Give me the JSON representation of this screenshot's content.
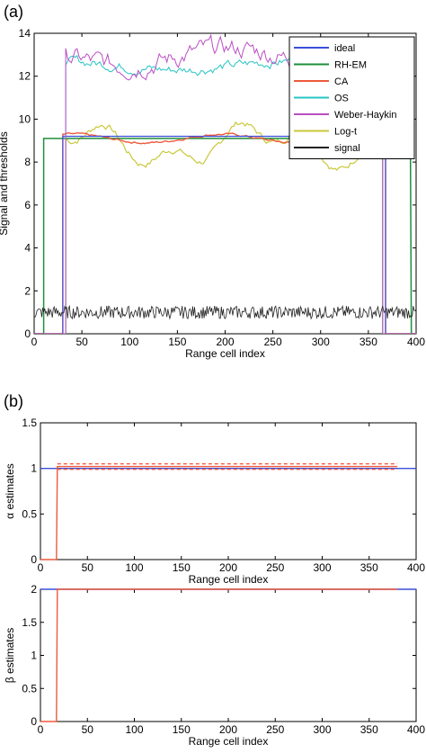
{
  "chart_data": [
    {
      "panel_label": "(a)",
      "type": "line",
      "xlabel": "Range cell index",
      "ylabel": "Signal and thresholds",
      "xlim": [
        0,
        400
      ],
      "ylim": [
        0,
        14
      ],
      "xticks": [
        "0",
        "50",
        "100",
        "150",
        "200",
        "250",
        "300",
        "350",
        "400"
      ],
      "yticks": [
        "0",
        "2",
        "4",
        "6",
        "8",
        "10",
        "12",
        "14"
      ],
      "legend_position": "top-right",
      "series": [
        {
          "name": "ideal",
          "color": "#3b4fd8",
          "level": 9.2,
          "x_start": 30,
          "x_end": 368
        },
        {
          "name": "RH-EM",
          "color": "#1f8f3a",
          "level": 9.1,
          "x_start": 10,
          "x_end": 395
        },
        {
          "name": "CA",
          "color": "#ee5a3c",
          "level": 9.1,
          "x_start": 30,
          "x_end": 368
        },
        {
          "name": "OS",
          "color": "#27c4c4",
          "level": 12.5,
          "x_start": 33,
          "x_end": 365
        },
        {
          "name": "Weber-Haykin",
          "color": "#bb4fc4",
          "level": 12.9,
          "x_start": 33,
          "x_end": 365
        },
        {
          "name": "Log-t",
          "color": "#c9c83a",
          "level": 9.0,
          "x_start": 33,
          "x_end": 365
        },
        {
          "name": "signal",
          "color": "#222222",
          "level": 1.0,
          "x_start": 0,
          "x_end": 400
        }
      ]
    },
    {
      "panel_label": "(b)",
      "type": "line",
      "xlabel": "Range cell index",
      "ylabel": "α estimates",
      "xlim": [
        0,
        400
      ],
      "ylim": [
        0,
        1.5
      ],
      "xticks": [
        "0",
        "50",
        "100",
        "150",
        "200",
        "250",
        "300",
        "350",
        "400"
      ],
      "yticks": [
        "0",
        "0.5",
        "1",
        "1.5"
      ],
      "series": [
        {
          "color": "#3b4fd8",
          "x": [
            0,
            400
          ],
          "y": [
            1,
            1
          ]
        },
        {
          "color": "#ee5a3c",
          "x": [
            0,
            17,
            18,
            380
          ],
          "y": [
            0,
            0,
            1.02,
            1.02
          ]
        },
        {
          "color": "#ee5a3c",
          "dashed": true,
          "x": [
            18,
            380
          ],
          "y": [
            1.05,
            1.05
          ]
        },
        {
          "color": "#ee5a3c",
          "dashed": true,
          "x": [
            18,
            380
          ],
          "y": [
            0.99,
            0.99
          ]
        }
      ]
    },
    {
      "type": "line",
      "xlabel": "Range cell index",
      "ylabel": "β estimates",
      "xlim": [
        0,
        400
      ],
      "ylim": [
        0,
        2
      ],
      "xticks": [
        "0",
        "50",
        "100",
        "150",
        "200",
        "250",
        "300",
        "350",
        "400"
      ],
      "yticks": [
        "0",
        "0.5",
        "1",
        "1.5",
        "2"
      ],
      "series": [
        {
          "color": "#3b4fd8",
          "x": [
            0,
            400
          ],
          "y": [
            2,
            2
          ]
        },
        {
          "color": "#ee5a3c",
          "x": [
            0,
            17,
            18,
            380
          ],
          "y": [
            0,
            0,
            2,
            2
          ]
        }
      ]
    }
  ]
}
